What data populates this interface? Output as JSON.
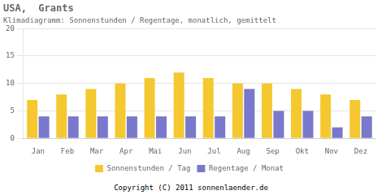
{
  "chart_data": {
    "type": "bar",
    "title": "USA,  Grants",
    "subtitle": "Klimadiagramm: Sonnenstunden / Regentage, monatlich, gemittelt",
    "categories": [
      "Jan",
      "Feb",
      "Mar",
      "Apr",
      "Mai",
      "Jun",
      "Jul",
      "Aug",
      "Sep",
      "Okt",
      "Nov",
      "Dez"
    ],
    "series": [
      {
        "name": "Sonnenstunden / Tag",
        "color": "#f5c830",
        "values": [
          7,
          8,
          9,
          10,
          11,
          12,
          11,
          10,
          10,
          9,
          8,
          7
        ]
      },
      {
        "name": "Regentage / Monat",
        "color": "#7878cc",
        "values": [
          4,
          4,
          4,
          4,
          4,
          4,
          4,
          9,
          5,
          5,
          2,
          4
        ]
      }
    ],
    "ylim": [
      0,
      20
    ],
    "yticks": [
      0,
      5,
      10,
      15,
      20
    ],
    "grid": true,
    "legend": "bottom",
    "annotations": [
      "Copyright (C) 2011 sonnenlaender.de"
    ]
  }
}
